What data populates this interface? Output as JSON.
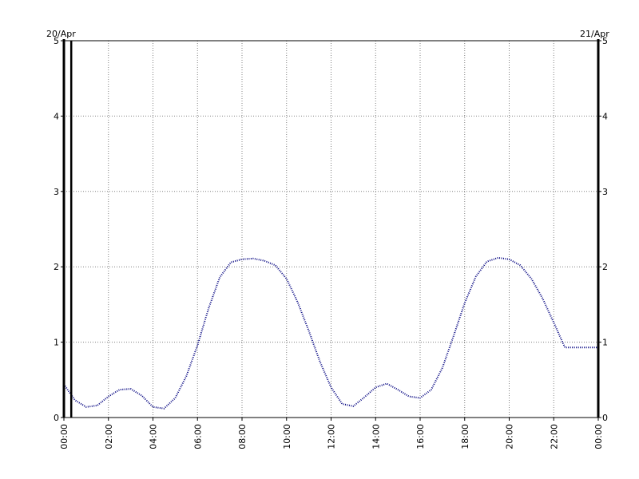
{
  "chart_data": {
    "type": "line",
    "title": "",
    "xlabel": "",
    "ylabel": "",
    "date_labels": {
      "start": "20/Apr",
      "end": "21/Apr"
    },
    "x_tick_labels": [
      "00:00",
      "02:00",
      "04:00",
      "06:00",
      "08:00",
      "10:00",
      "12:00",
      "14:00",
      "16:00",
      "18:00",
      "20:00",
      "22:00",
      "00:00"
    ],
    "y_tick_labels": [
      "0",
      "1",
      "2",
      "3",
      "4",
      "5"
    ],
    "xlim": [
      0,
      24
    ],
    "ylim": [
      0,
      5
    ],
    "grid": true,
    "grid_style": "dotted",
    "marker_time_hours": 0.33,
    "series": [
      {
        "color": "#00007f",
        "x": [
          0,
          0.5,
          1,
          1.5,
          2,
          2.5,
          3,
          3.5,
          4,
          4.5,
          5,
          5.5,
          6,
          6.5,
          7,
          7.5,
          8,
          8.5,
          9,
          9.5,
          10,
          10.5,
          11,
          11.5,
          12,
          12.5,
          13,
          13.5,
          14,
          14.5,
          15,
          15.5,
          16,
          16.5,
          17,
          17.5,
          18,
          18.5,
          19,
          19.5,
          20,
          20.5,
          21,
          21.5,
          22,
          22.5,
          23,
          23.5,
          24
        ],
        "y": [
          0.44,
          0.23,
          0.14,
          0.16,
          0.28,
          0.37,
          0.38,
          0.29,
          0.14,
          0.12,
          0.26,
          0.55,
          0.96,
          1.45,
          1.86,
          2.06,
          2.1,
          2.11,
          2.08,
          2.02,
          1.84,
          1.53,
          1.15,
          0.74,
          0.4,
          0.18,
          0.15,
          0.27,
          0.4,
          0.45,
          0.37,
          0.28,
          0.26,
          0.37,
          0.66,
          1.08,
          1.52,
          1.87,
          2.07,
          2.12,
          2.1,
          2.02,
          1.84,
          1.58,
          1.26,
          0.93,
          0.93,
          0.93,
          0.93
        ]
      }
    ]
  }
}
